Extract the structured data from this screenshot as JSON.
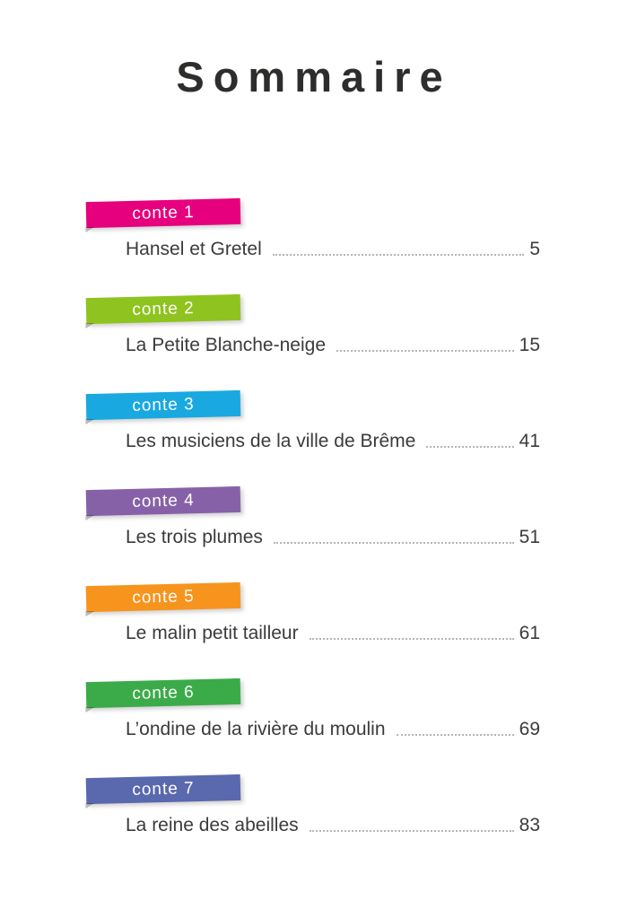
{
  "page_title": "Sommaire",
  "entries": [
    {
      "label": "conte 1",
      "title": "Hansel et Gretel",
      "page": "5",
      "color": "#e6007e"
    },
    {
      "label": "conte 2",
      "title": "La Petite Blanche-neige",
      "page": "15",
      "color": "#8fc31f"
    },
    {
      "label": "conte 3",
      "title": "Les musiciens de la ville de Brême",
      "page": "41",
      "color": "#19a9e0"
    },
    {
      "label": "conte 4",
      "title": "Les trois plumes",
      "page": "51",
      "color": "#8761a8"
    },
    {
      "label": "conte 5",
      "title": "Le malin petit tailleur",
      "page": "61",
      "color": "#f7941d"
    },
    {
      "label": "conte 6",
      "title": "L’ondine de la rivière du moulin",
      "page": "69",
      "color": "#3bab49"
    },
    {
      "label": "conte 7",
      "title": "La reine des abeilles",
      "page": "83",
      "color": "#5a68ae"
    }
  ]
}
